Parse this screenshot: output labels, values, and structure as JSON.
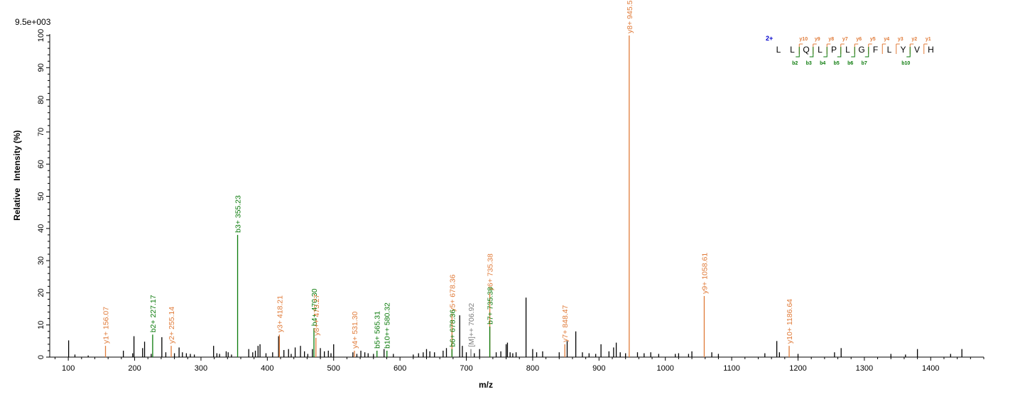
{
  "chart_data": {
    "type": "bar",
    "title": "",
    "scale_label": "9.5e+003",
    "xlabel": "m/z",
    "ylabel": "Relative   Intensity (%)",
    "xlim": [
      72,
      1480
    ],
    "ylim": [
      0,
      100
    ],
    "xticks": [
      100,
      200,
      300,
      400,
      500,
      600,
      700,
      800,
      900,
      1000,
      1100,
      1200,
      1300,
      1400
    ],
    "yticks": [
      0,
      10,
      20,
      30,
      40,
      50,
      60,
      70,
      80,
      90,
      100
    ],
    "colors": {
      "y_ion": "#e07b39",
      "b_ion": "#0a7a0a",
      "precursor": "#7f7f7f",
      "unannotated": "#000000",
      "charge": "#0000cc"
    },
    "annotated_peaks": [
      {
        "mz": 156.07,
        "intensity": 3.5,
        "label": "y1+ 156.07",
        "ion": "y_ion"
      },
      {
        "mz": 227.17,
        "intensity": 7.0,
        "label": "b2+ 227.17",
        "ion": "b_ion"
      },
      {
        "mz": 255.14,
        "intensity": 3.5,
        "label": "y2+ 255.14",
        "ion": "y_ion"
      },
      {
        "mz": 355.23,
        "intensity": 38.0,
        "label": "b3+ 355.23",
        "ion": "b_ion"
      },
      {
        "mz": 418.21,
        "intensity": 7.0,
        "label": "y3+ 418.21",
        "ion": "y_ion"
      },
      {
        "mz": 470.3,
        "intensity": 9.0,
        "label": "b4+ 470.30",
        "ion": "b_ion"
      },
      {
        "mz": 473.27,
        "intensity": 6.0,
        "label": "y8++ 473.27",
        "ion": "y_ion"
      },
      {
        "mz": 531.3,
        "intensity": 2.0,
        "label": "y4+ 531.30",
        "ion": "y_ion"
      },
      {
        "mz": 565.31,
        "intensity": 2.0,
        "label": "b5+ 565.31",
        "ion": "b_ion"
      },
      {
        "mz": 580.32,
        "intensity": 2.0,
        "label": "b10++ 580.32",
        "ion": "b_ion"
      },
      {
        "mz": 678.36,
        "intensity": 13.5,
        "label": "y5+ 678.36",
        "ion": "y_ion"
      },
      {
        "mz": 678.36,
        "intensity": 2.5,
        "label": "b6+ 678.36",
        "ion": "b_ion"
      },
      {
        "mz": 706.92,
        "intensity": 2.5,
        "label": "[M]++ 706.92",
        "ion": "precursor"
      },
      {
        "mz": 735.38,
        "intensity": 20.0,
        "label": "y6+ 735.38",
        "ion": "y_ion"
      },
      {
        "mz": 735.38,
        "intensity": 9.5,
        "label": "b7+ 735.38",
        "ion": "b_ion"
      },
      {
        "mz": 848.47,
        "intensity": 4.0,
        "label": "y7+ 848.47",
        "ion": "y_ion"
      },
      {
        "mz": 945.52,
        "intensity": 100.0,
        "label": "y8+ 945.52",
        "ion": "y_ion"
      },
      {
        "mz": 1058.61,
        "intensity": 19.0,
        "label": "y9+ 1058.61",
        "ion": "y_ion"
      },
      {
        "mz": 1186.64,
        "intensity": 3.5,
        "label": "y10+ 1186.64",
        "ion": "y_ion"
      }
    ],
    "unannotated_peaks": [
      [
        100.5,
        5.2
      ],
      [
        110,
        0.8
      ],
      [
        130,
        0.5
      ],
      [
        183,
        2.0
      ],
      [
        197,
        1.2
      ],
      [
        199,
        6.5
      ],
      [
        212,
        2.8
      ],
      [
        215,
        4.8
      ],
      [
        225,
        1.0
      ],
      [
        241,
        6.2
      ],
      [
        247,
        1.5
      ],
      [
        260,
        1.2
      ],
      [
        267,
        3.0
      ],
      [
        272,
        1.5
      ],
      [
        278,
        1.2
      ],
      [
        284,
        1.0
      ],
      [
        290,
        0.8
      ],
      [
        319,
        3.5
      ],
      [
        324,
        1.2
      ],
      [
        328,
        1.0
      ],
      [
        338,
        1.8
      ],
      [
        341,
        1.5
      ],
      [
        346,
        0.8
      ],
      [
        372,
        2.5
      ],
      [
        378,
        1.5
      ],
      [
        382,
        2.0
      ],
      [
        386,
        3.5
      ],
      [
        389,
        4.0
      ],
      [
        398,
        1.2
      ],
      [
        408,
        1.5
      ],
      [
        417,
        6.5
      ],
      [
        425,
        2.2
      ],
      [
        432,
        2.5
      ],
      [
        436,
        1.0
      ],
      [
        442,
        3.0
      ],
      [
        450,
        3.5
      ],
      [
        456,
        1.8
      ],
      [
        461,
        1.0
      ],
      [
        468,
        2.5
      ],
      [
        480,
        2.8
      ],
      [
        486,
        1.8
      ],
      [
        492,
        2.0
      ],
      [
        496,
        1.2
      ],
      [
        500,
        4.0
      ],
      [
        529,
        1.5
      ],
      [
        535,
        1.0
      ],
      [
        541,
        2.0
      ],
      [
        547,
        1.5
      ],
      [
        552,
        1.2
      ],
      [
        560,
        1.0
      ],
      [
        576,
        2.5
      ],
      [
        590,
        1.0
      ],
      [
        620,
        0.8
      ],
      [
        628,
        1.2
      ],
      [
        635,
        1.5
      ],
      [
        640,
        2.5
      ],
      [
        645,
        1.8
      ],
      [
        652,
        1.5
      ],
      [
        665,
        2.0
      ],
      [
        670,
        2.8
      ],
      [
        690,
        13.0
      ],
      [
        694,
        3.5
      ],
      [
        700,
        1.5
      ],
      [
        712,
        1.2
      ],
      [
        720,
        2.5
      ],
      [
        745,
        1.5
      ],
      [
        752,
        1.8
      ],
      [
        760,
        4.0
      ],
      [
        762,
        4.5
      ],
      [
        766,
        1.5
      ],
      [
        770,
        1.2
      ],
      [
        775,
        1.5
      ],
      [
        790,
        18.5
      ],
      [
        800,
        2.5
      ],
      [
        806,
        1.5
      ],
      [
        815,
        1.8
      ],
      [
        840,
        1.5
      ],
      [
        852,
        5.0
      ],
      [
        865,
        8.0
      ],
      [
        875,
        1.5
      ],
      [
        885,
        1.2
      ],
      [
        895,
        1.0
      ],
      [
        903,
        4.0
      ],
      [
        915,
        1.8
      ],
      [
        922,
        3.0
      ],
      [
        926,
        4.5
      ],
      [
        932,
        1.5
      ],
      [
        940,
        1.2
      ],
      [
        958,
        1.5
      ],
      [
        968,
        1.2
      ],
      [
        978,
        1.5
      ],
      [
        990,
        1.0
      ],
      [
        1015,
        1.0
      ],
      [
        1020,
        1.2
      ],
      [
        1035,
        1.0
      ],
      [
        1040,
        1.8
      ],
      [
        1070,
        1.5
      ],
      [
        1080,
        1.0
      ],
      [
        1150,
        1.2
      ],
      [
        1168,
        5.0
      ],
      [
        1172,
        1.5
      ],
      [
        1200,
        1.0
      ],
      [
        1255,
        1.5
      ],
      [
        1265,
        2.8
      ],
      [
        1340,
        1.0
      ],
      [
        1362,
        0.8
      ],
      [
        1380,
        2.5
      ],
      [
        1430,
        1.0
      ],
      [
        1447,
        2.5
      ]
    ],
    "sequence": {
      "charge_label": "2+",
      "residues": [
        "L",
        "L",
        "Q",
        "L",
        "P",
        "L",
        "G",
        "F",
        "L",
        "Y",
        "V",
        "H"
      ],
      "y_ions": [
        "y10",
        "y9",
        "y8",
        "y7",
        "y6",
        "y5",
        "y4",
        "y3",
        "y2",
        "y1"
      ],
      "b_ions": [
        "b2",
        "b3",
        "b4",
        "b5",
        "b6",
        "b7",
        "b10"
      ]
    }
  }
}
